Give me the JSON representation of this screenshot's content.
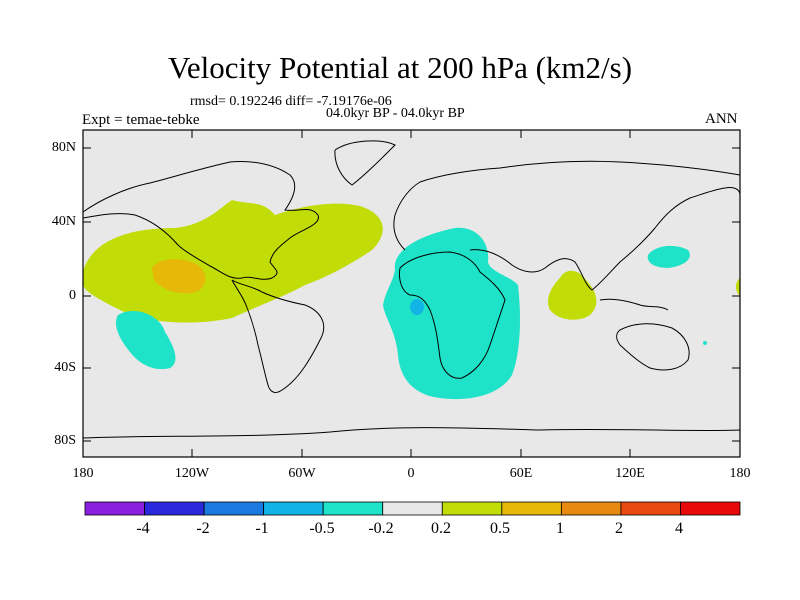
{
  "header": {
    "title": "Velocity Potential at 200 hPa (km2/s)",
    "rmsd_line": "rmsd= 0.192246 diff= -7.19176e-06",
    "period": "04.0kyr BP - 04.0kyr BP",
    "expt": "Expt = temae-tebke",
    "season": "ANN"
  },
  "axes": {
    "y_ticks": [
      "80N",
      "40N",
      "0",
      "40S",
      "80S"
    ],
    "x_ticks": [
      "180",
      "120W",
      "60W",
      "0",
      "60E",
      "120E",
      "180"
    ]
  },
  "colorbar": {
    "labels": [
      "-4",
      "-2",
      "-1",
      "-0.5",
      "-0.2",
      "0.2",
      "0.5",
      "1",
      "2",
      "4"
    ],
    "colors": [
      "#8a1fe0",
      "#2a2adc",
      "#1a7ae0",
      "#12b4e6",
      "#1fe3c8",
      "#e8e8e8",
      "#c2dc08",
      "#e6b808",
      "#e88a10",
      "#e84a10",
      "#e80a0a"
    ]
  },
  "colors": {
    "map_bg": "#e8e8e8",
    "pos_weak": "#c2dc08",
    "pos_mid": "#e6b808",
    "neg_weak": "#1fe3c8",
    "neg_mid": "#12b4e6"
  }
}
